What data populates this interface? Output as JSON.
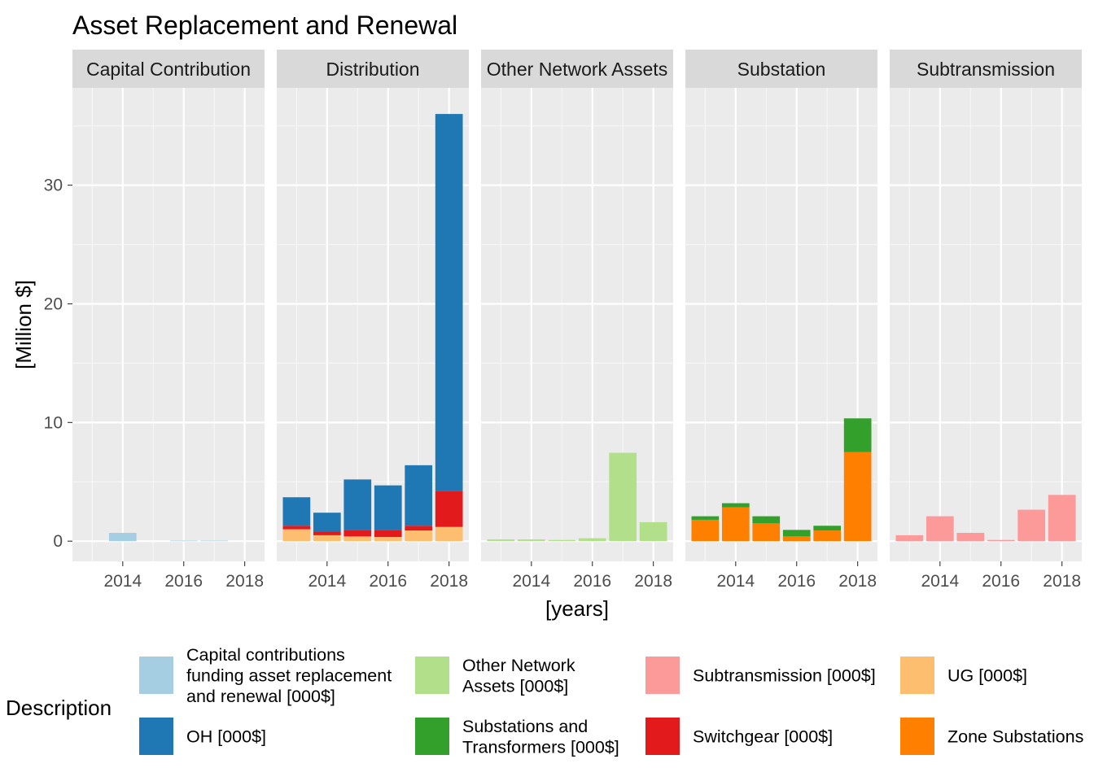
{
  "chart_data": {
    "type": "bar",
    "stacked": true,
    "faceted": true,
    "title": "Asset Replacement and Renewal",
    "xlabel": "[years]",
    "ylabel": "[Million $]",
    "ylim": [
      -1.7,
      38.2
    ],
    "y_ticks": [
      0,
      10,
      20,
      30
    ],
    "x_range": [
      2012.35,
      2018.65
    ],
    "x_ticks": [
      2014,
      2016,
      2018
    ],
    "x_minor": [
      2013,
      2015,
      2017
    ],
    "legend": {
      "title": "Description",
      "position": "bottom",
      "entries": [
        {
          "key": "cc",
          "lines": [
            "Capital contributions",
            "funding asset replacement",
            "and renewal [000$]"
          ],
          "color": "#a6cee3"
        },
        {
          "key": "oh",
          "lines": [
            "OH [000$]"
          ],
          "color": "#1f78b4"
        },
        {
          "key": "ona",
          "lines": [
            "Other Network",
            "Assets [000$]"
          ],
          "color": "#b2df8a"
        },
        {
          "key": "sat",
          "lines": [
            "Substations and",
            "Transformers [000$]"
          ],
          "color": "#33a02c"
        },
        {
          "key": "subtx",
          "lines": [
            "Subtransmission [000$]"
          ],
          "color": "#fb9a99"
        },
        {
          "key": "sw",
          "lines": [
            "Switchgear [000$]"
          ],
          "color": "#e31a1c"
        },
        {
          "key": "ug",
          "lines": [
            "UG [000$]"
          ],
          "color": "#fdbf6f"
        },
        {
          "key": "zs",
          "lines": [
            "Zone Substations"
          ],
          "color": "#ff7f00"
        }
      ]
    },
    "panels": [
      {
        "name": "Capital Contribution",
        "x": [
          2013,
          2014,
          2015,
          2016,
          2017,
          2018
        ],
        "series": [
          {
            "key": "cc",
            "values": [
              0,
              0.7,
              0,
              0.05,
              0.05,
              0
            ]
          }
        ]
      },
      {
        "name": "Distribution",
        "x": [
          2013,
          2014,
          2015,
          2016,
          2017,
          2018
        ],
        "series": [
          {
            "key": "ug",
            "values": [
              1.0,
              0.5,
              0.4,
              0.35,
              0.9,
              1.2
            ]
          },
          {
            "key": "sw",
            "values": [
              0.3,
              0.3,
              0.55,
              0.6,
              0.4,
              3.0
            ]
          },
          {
            "key": "oh",
            "values": [
              2.4,
              1.6,
              4.25,
              3.75,
              5.1,
              31.8
            ]
          }
        ]
      },
      {
        "name": "Other Network Assets",
        "x": [
          2013,
          2014,
          2015,
          2016,
          2017,
          2018
        ],
        "series": [
          {
            "key": "ona",
            "values": [
              0.15,
              0.15,
              0.1,
              0.25,
              7.45,
              1.6
            ]
          }
        ]
      },
      {
        "name": "Substation",
        "x": [
          2013,
          2014,
          2015,
          2016,
          2017,
          2018
        ],
        "series": [
          {
            "key": "zs",
            "values": [
              1.8,
              2.85,
              1.5,
              0.4,
              0.9,
              7.5
            ]
          },
          {
            "key": "sat",
            "values": [
              0.3,
              0.35,
              0.6,
              0.55,
              0.4,
              2.85
            ]
          }
        ]
      },
      {
        "name": "Subtransmission",
        "x": [
          2013,
          2014,
          2015,
          2016,
          2017,
          2018
        ],
        "series": [
          {
            "key": "subtx",
            "values": [
              0.5,
              2.1,
              0.7,
              0.1,
              2.65,
              3.9
            ]
          }
        ]
      }
    ]
  }
}
